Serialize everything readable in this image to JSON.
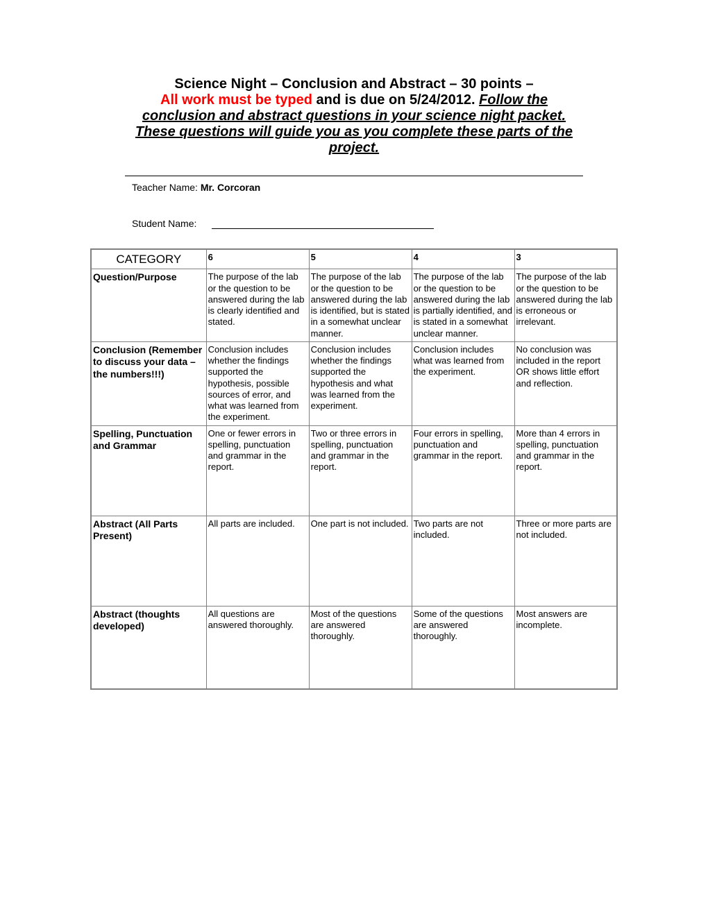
{
  "title": {
    "line1": "Science Night – Conclusion and Abstract – 30 points –",
    "red": "All work must be typed",
    "black_after_red": " and is due on 5/24/2012.  ",
    "underline": "Follow the conclusion and abstract questions in your science night packet. These questions will guide you as you complete these parts of the project."
  },
  "teacher_label": "Teacher Name: ",
  "teacher_name": "Mr. Corcoran",
  "student_label": "Student Name:",
  "columns": [
    "CATEGORY",
    "6",
    "5",
    "4",
    "3"
  ],
  "rows": [
    {
      "category": "Question/Purpose",
      "c6": "The purpose of the lab or the question to be answered during the lab is clearly identified and stated.",
      "c5": "The purpose of the lab or the question to be answered during the lab is identified, but is stated in a somewhat unclear manner.",
      "c4": "The purpose of the lab or the question to be answered during the lab is partially identified, and is stated in a somewhat unclear manner.",
      "c3": "The purpose of the lab or the question to be answered during the lab is erroneous or irrelevant."
    },
    {
      "category": "Conclusion (Remember to discuss your data – the numbers!!!)",
      "c6": "Conclusion includes whether the findings supported the hypothesis, possible sources of error, and what was learned from the experiment.",
      "c5": "Conclusion includes whether the findings supported the hypothesis and what was learned from the experiment.",
      "c4": "Conclusion includes what was learned from the experiment.",
      "c3": "No conclusion was included in the report OR shows little effort and reflection."
    },
    {
      "category": "Spelling, Punctuation and Grammar",
      "c6": "One or fewer errors in spelling, punctuation and grammar in the report.",
      "c5": "Two or three errors in spelling, punctuation and grammar in the report.",
      "c4": "Four errors in spelling, punctuation and grammar in the report.",
      "c3": "More than 4 errors in spelling, punctuation and grammar in the report."
    },
    {
      "category": "Abstract (All Parts Present)",
      "c6": "All parts are included.",
      "c5": "One part is not included.",
      "c4": "Two parts are not included.",
      "c3": "Three or more parts are not included."
    },
    {
      "category": "Abstract (thoughts developed)",
      "c6": "All questions are answered thoroughly.",
      "c5": "Most of the questions are answered thoroughly.",
      "c4": "Some of the questions are answered thoroughly.",
      "c3": "Most answers are incomplete."
    }
  ]
}
